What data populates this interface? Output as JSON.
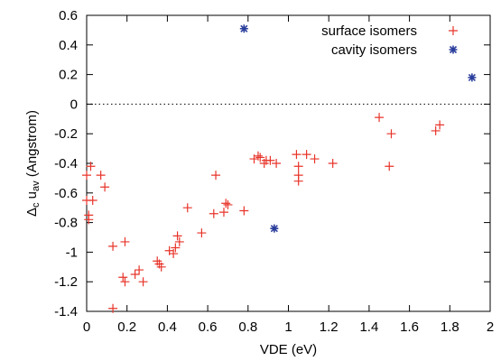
{
  "chart_data": {
    "type": "scatter",
    "xlabel": "VDE (eV)",
    "ylabel": {
      "prefix": "Δ",
      "sub1": "c",
      "mid": " u",
      "sub2": "av",
      "suffix": " (Angstrom)"
    },
    "xlim": [
      0,
      2
    ],
    "ylim": [
      -1.4,
      0.6
    ],
    "xticks": [
      0,
      0.2,
      0.4,
      0.6,
      0.8,
      1,
      1.2,
      1.4,
      1.6,
      1.8,
      2
    ],
    "xtick_labels": [
      "0",
      "0.2",
      "0.4",
      "0.6",
      "0.8",
      "1",
      "1.2",
      "1.4",
      "1.6",
      "1.8",
      "2"
    ],
    "yticks": [
      -1.4,
      -1.2,
      -1,
      -0.8,
      -0.6,
      -0.4,
      -0.2,
      0,
      0.2,
      0.4,
      0.6
    ],
    "ytick_labels": [
      "-1.4",
      "-1.2",
      "-1",
      "-0.8",
      "-0.6",
      "-0.4",
      "-0.2",
      "0",
      "0.2",
      "0.4",
      "0.6"
    ],
    "grid": false,
    "zero_line": true,
    "legend_position": "top-right",
    "series": [
      {
        "name": "surface isomers",
        "marker": "plus",
        "color": "#e8342a",
        "points": [
          [
            0.0,
            -0.48
          ],
          [
            0.0,
            -0.65
          ],
          [
            0.01,
            -0.75
          ],
          [
            0.01,
            -0.78
          ],
          [
            0.02,
            -0.42
          ],
          [
            0.03,
            -0.65
          ],
          [
            0.07,
            -0.48
          ],
          [
            0.09,
            -0.56
          ],
          [
            0.13,
            -0.96
          ],
          [
            0.13,
            -1.38
          ],
          [
            0.18,
            -1.17
          ],
          [
            0.19,
            -0.93
          ],
          [
            0.19,
            -1.2
          ],
          [
            0.24,
            -1.15
          ],
          [
            0.26,
            -1.12
          ],
          [
            0.28,
            -1.2
          ],
          [
            0.35,
            -1.06
          ],
          [
            0.36,
            -1.08
          ],
          [
            0.37,
            -1.1
          ],
          [
            0.41,
            -0.99
          ],
          [
            0.43,
            -1.01
          ],
          [
            0.44,
            -0.97
          ],
          [
            0.45,
            -0.89
          ],
          [
            0.46,
            -0.93
          ],
          [
            0.5,
            -0.7
          ],
          [
            0.57,
            -0.87
          ],
          [
            0.63,
            -0.74
          ],
          [
            0.64,
            -0.48
          ],
          [
            0.68,
            -0.73
          ],
          [
            0.69,
            -0.67
          ],
          [
            0.7,
            -0.68
          ],
          [
            0.78,
            -0.72
          ],
          [
            0.83,
            -0.37
          ],
          [
            0.85,
            -0.35
          ],
          [
            0.86,
            -0.36
          ],
          [
            0.88,
            -0.4
          ],
          [
            0.89,
            -0.38
          ],
          [
            0.91,
            -0.38
          ],
          [
            0.94,
            -0.4
          ],
          [
            1.04,
            -0.34
          ],
          [
            1.05,
            -0.42
          ],
          [
            1.05,
            -0.48
          ],
          [
            1.05,
            -0.52
          ],
          [
            1.09,
            -0.34
          ],
          [
            1.13,
            -0.37
          ],
          [
            1.22,
            -0.4
          ],
          [
            1.45,
            -0.09
          ],
          [
            1.5,
            -0.42
          ],
          [
            1.51,
            -0.2
          ],
          [
            1.73,
            -0.18
          ],
          [
            1.75,
            -0.14
          ]
        ]
      },
      {
        "name": "cavity isomers",
        "marker": "star",
        "color": "#2b3e9c",
        "points": [
          [
            0.78,
            0.51
          ],
          [
            0.93,
            -0.84
          ],
          [
            1.91,
            0.18
          ]
        ]
      }
    ]
  }
}
